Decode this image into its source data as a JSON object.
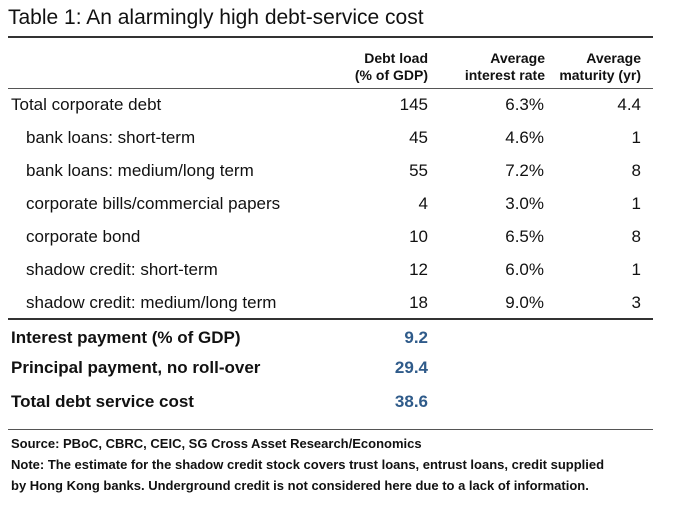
{
  "title": "Table 1: An alarmingly high debt-service cost",
  "headers": {
    "col1": [
      "Debt load",
      "(% of GDP)"
    ],
    "col2": [
      "Average",
      "interest rate"
    ],
    "col3": [
      "Average",
      "maturity (yr)"
    ]
  },
  "rows": [
    {
      "label": "Total corporate debt",
      "debt": "145",
      "rate": "6.3%",
      "maturity": "4.4"
    },
    {
      "label": "bank loans: short-term",
      "debt": "45",
      "rate": "4.6%",
      "maturity": "1"
    },
    {
      "label": "bank loans: medium/long term",
      "debt": "55",
      "rate": "7.2%",
      "maturity": "8"
    },
    {
      "label": "corporate bills/commercial papers",
      "debt": "4",
      "rate": "3.0%",
      "maturity": "1"
    },
    {
      "label": "corporate bond",
      "debt": "10",
      "rate": "6.5%",
      "maturity": "8"
    },
    {
      "label": "shadow credit: short-term",
      "debt": "12",
      "rate": "6.0%",
      "maturity": "1"
    },
    {
      "label": "shadow credit: medium/long term",
      "debt": "18",
      "rate": "9.0%",
      "maturity": "3"
    }
  ],
  "summary": [
    {
      "label": "Interest payment (% of GDP)",
      "value": "9.2"
    },
    {
      "label": "Principal payment, no roll-over",
      "value": "29.4"
    },
    {
      "label": "Total debt service cost",
      "value": "38.6"
    }
  ],
  "footer": {
    "source": "Source: PBoC, CBRC, CEIC, SG Cross Asset Research/Economics",
    "note_line1": "Note: The estimate for the shadow credit stock covers trust loans, entrust loans, credit supplied",
    "note_line2": "by Hong Kong banks. Underground credit is not considered here due to a lack of information."
  }
}
